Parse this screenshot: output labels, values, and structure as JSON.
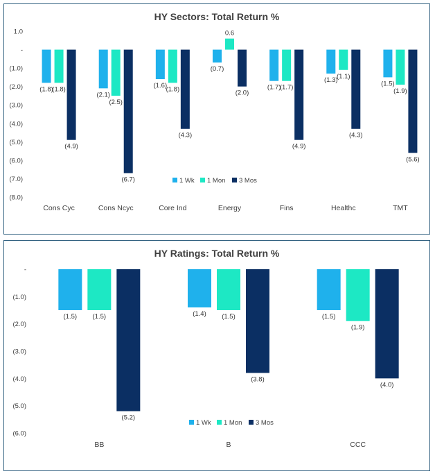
{
  "chart_data": [
    {
      "type": "bar",
      "title": "HY Sectors: Total Return %",
      "categories": [
        "Cons Cyc",
        "Cons Ncyc",
        "Core Ind",
        "Energy",
        "Fins",
        "Healthc",
        "TMT"
      ],
      "series": [
        {
          "name": "1 Wk",
          "color": "#1fb1ec",
          "values": [
            -1.8,
            -2.1,
            -1.6,
            -0.7,
            -1.7,
            -1.3,
            -1.5
          ]
        },
        {
          "name": "1 Mon",
          "color": "#1de8c4",
          "values": [
            -1.8,
            -2.5,
            -1.8,
            0.6,
            -1.7,
            -1.1,
            -1.9
          ]
        },
        {
          "name": "3 Mos",
          "color": "#0b2f63",
          "values": [
            -4.9,
            -6.7,
            -4.3,
            -2.0,
            -4.9,
            -4.3,
            -5.6
          ]
        }
      ],
      "ylim": [
        -8,
        1
      ],
      "yticks": [
        "1.0",
        "-",
        "(1.0)",
        "(2.0)",
        "(3.0)",
        "(4.0)",
        "(5.0)",
        "(6.0)",
        "(7.0)",
        "(8.0)"
      ],
      "data_labels": [
        [
          "(1.8)",
          "(2.1)",
          "(1.6)",
          "(0.7)",
          "(1.7)",
          "(1.3)",
          "(1.5)"
        ],
        [
          "(1.8)",
          "(2.5)",
          "(1.8)",
          "0.6",
          "(1.7)",
          "(1.1)",
          "(1.9)"
        ],
        [
          "(4.9)",
          "(6.7)",
          "(4.3)",
          "(2.0)",
          "(4.9)",
          "(4.3)",
          "(5.6)"
        ]
      ],
      "legend_position": "inside-lower-center",
      "grid": false
    },
    {
      "type": "bar",
      "title": "HY Ratings: Total Return %",
      "categories": [
        "BB",
        "B",
        "CCC"
      ],
      "series": [
        {
          "name": "1 Wk",
          "color": "#1fb1ec",
          "values": [
            -1.5,
            -1.4,
            -1.5
          ]
        },
        {
          "name": "1 Mon",
          "color": "#1de8c4",
          "values": [
            -1.5,
            -1.5,
            -1.9
          ]
        },
        {
          "name": "3 Mos",
          "color": "#0b2f63",
          "values": [
            -5.2,
            -3.8,
            -4.0
          ]
        }
      ],
      "ylim": [
        -6,
        0
      ],
      "yticks": [
        "-",
        "(1.0)",
        "(2.0)",
        "(3.0)",
        "(4.0)",
        "(5.0)",
        "(6.0)"
      ],
      "data_labels": [
        [
          "(1.5)",
          "(1.4)",
          "(1.5)"
        ],
        [
          "(1.5)",
          "(1.5)",
          "(1.9)"
        ],
        [
          "(5.2)",
          "(3.8)",
          "(4.0)"
        ]
      ],
      "legend_position": "inside-lower-center",
      "grid": false
    }
  ]
}
